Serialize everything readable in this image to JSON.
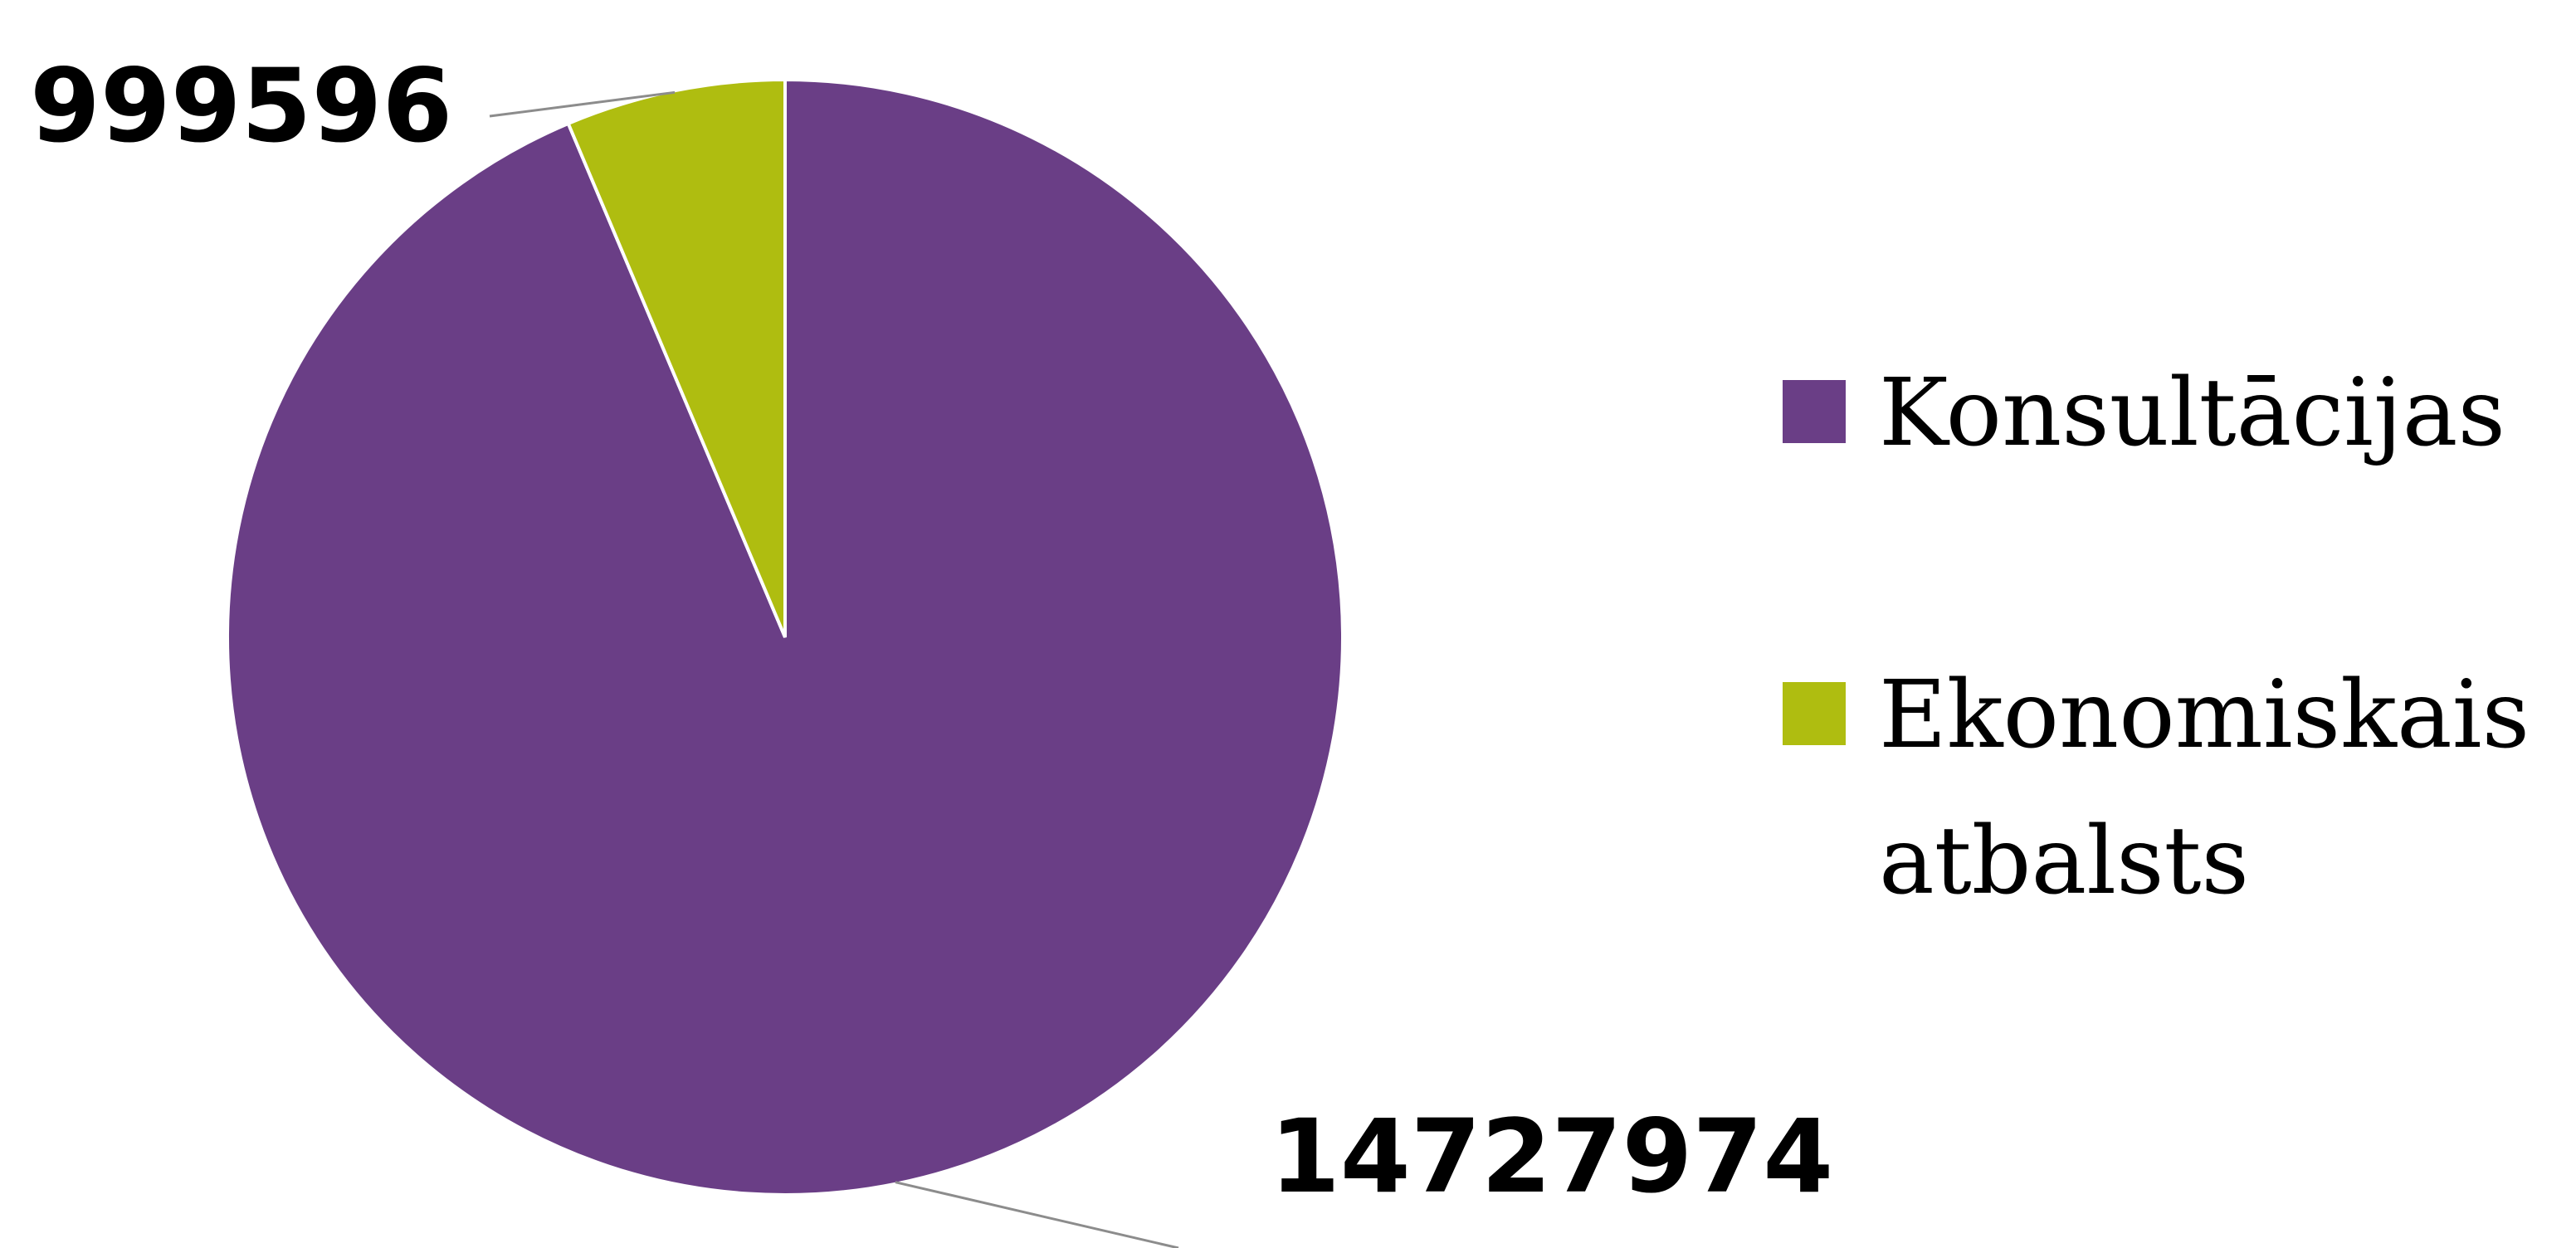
{
  "chart_data": {
    "type": "pie",
    "title": "",
    "categories": [
      "Konsultācijas",
      "Ekonomiskais atbalsts"
    ],
    "values": [
      14727974,
      999596
    ],
    "data_labels": [
      "14727974",
      "999596"
    ],
    "colors": [
      "#6a3e86",
      "#afbd10"
    ],
    "legend": {
      "placement": "right",
      "entries": [
        {
          "lines": [
            "Konsultācijas"
          ]
        },
        {
          "lines": [
            "Ekonomiskais",
            "atbalsts"
          ]
        }
      ]
    }
  }
}
